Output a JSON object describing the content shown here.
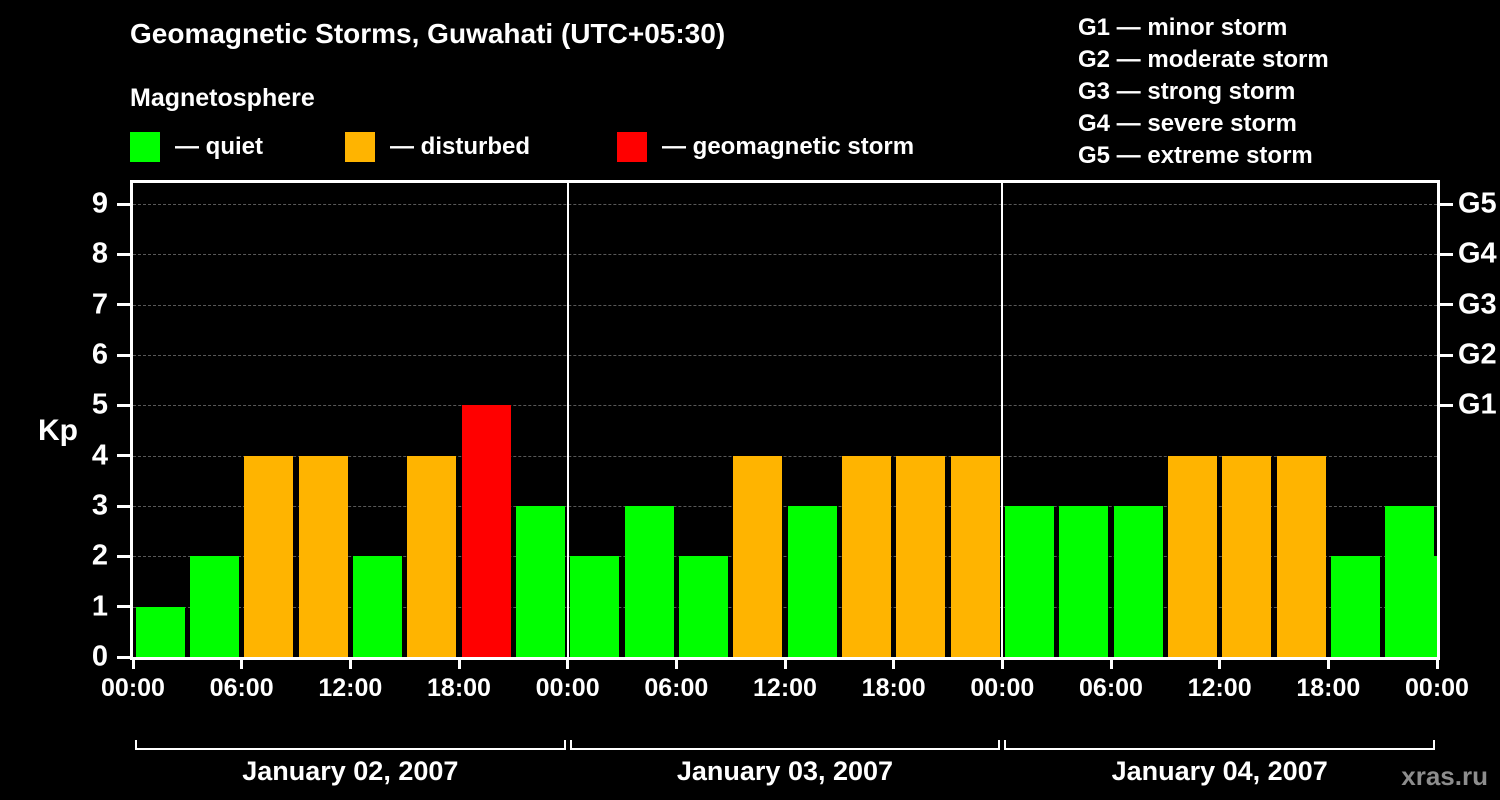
{
  "header": {
    "title": "Geomagnetic Storms, Guwahati (UTC+05:30)",
    "subtitle": "Magnetosphere"
  },
  "legend": {
    "items": [
      {
        "name": "quiet",
        "label": "— quiet",
        "color": "#00ff00"
      },
      {
        "name": "disturbed",
        "label": "— disturbed",
        "color": "#ffb400"
      },
      {
        "name": "storm",
        "label": "— geomagnetic storm",
        "color": "#ff0000"
      }
    ]
  },
  "g_legend": {
    "items": [
      {
        "label": "G1 — minor storm"
      },
      {
        "label": "G2 — moderate storm"
      },
      {
        "label": "G3 — strong storm"
      },
      {
        "label": "G4 — severe storm"
      },
      {
        "label": "G5 — extreme storm"
      }
    ]
  },
  "chart_data": {
    "type": "bar",
    "title": "Geomagnetic Storms, Guwahati (UTC+05:30)",
    "ylabel": "Kp",
    "ylim": [
      0,
      9.42
    ],
    "y_ticks": [
      0,
      1,
      2,
      3,
      4,
      5,
      6,
      7,
      8,
      9
    ],
    "x_hours_total": 72,
    "x_tick_hours": [
      0,
      6,
      12,
      18,
      24,
      30,
      36,
      42,
      48,
      54,
      60,
      66,
      72
    ],
    "x_tick_labels": [
      "00:00",
      "06:00",
      "12:00",
      "18:00",
      "00:00",
      "06:00",
      "12:00",
      "18:00",
      "00:00",
      "06:00",
      "12:00",
      "18:00",
      "00:00"
    ],
    "right_axis_labels": [
      {
        "label": "G1",
        "kp": 5
      },
      {
        "label": "G2",
        "kp": 6
      },
      {
        "label": "G3",
        "kp": 7
      },
      {
        "label": "G4",
        "kp": 8
      },
      {
        "label": "G5",
        "kp": 9
      }
    ],
    "day_separators_hours": [
      24,
      48
    ],
    "interval_hours": 3,
    "days": [
      {
        "date": "January 02, 2007",
        "start_hour": 0,
        "kp_values": [
          1,
          2,
          4,
          4,
          2,
          4,
          5,
          3
        ]
      },
      {
        "date": "January 03, 2007",
        "start_hour": 24,
        "kp_values": [
          2,
          3,
          2,
          4,
          3,
          4,
          4,
          4
        ]
      },
      {
        "date": "January 04, 2007",
        "start_hour": 48,
        "kp_values": [
          3,
          3,
          3,
          4,
          4,
          4,
          2,
          3
        ]
      }
    ],
    "partial_next_day": {
      "start_hour": 72,
      "kp": 2
    },
    "colors": {
      "quiet": "#00ff00",
      "disturbed": "#ffb400",
      "storm": "#ff0000",
      "threshold_disturbed": 4,
      "threshold_storm": 5
    },
    "grid": true
  },
  "footer": {
    "watermark": "xras.ru"
  }
}
